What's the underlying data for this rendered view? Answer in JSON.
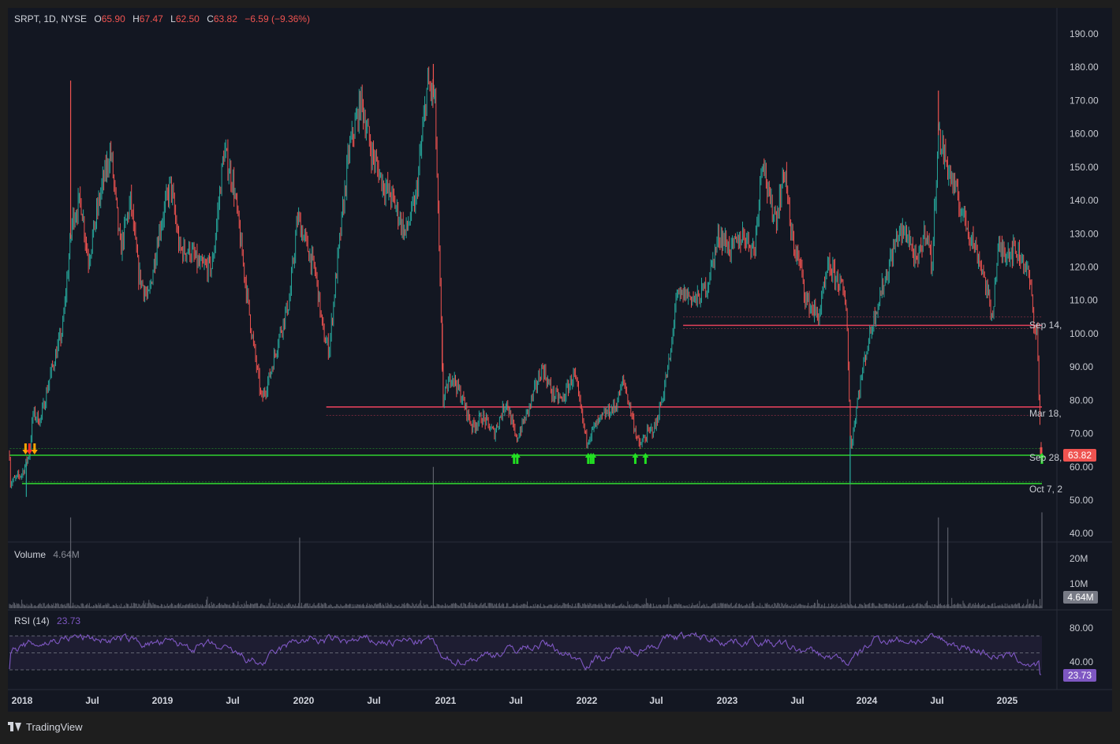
{
  "header": {
    "symbol": "SRPT, 1D, NYSE",
    "o_label": "O",
    "o_value": "65.90",
    "h_label": "H",
    "h_value": "67.47",
    "l_label": "L",
    "l_value": "62.50",
    "c_label": "C",
    "c_value": "63.82",
    "change": "−6.59 (−9.36%)"
  },
  "price_axis": {
    "ticks": [
      "190.00",
      "180.00",
      "170.00",
      "160.00",
      "150.00",
      "140.00",
      "130.00",
      "120.00",
      "110.00",
      "100.00",
      "90.00",
      "80.00",
      "70.00",
      "60.00",
      "50.00",
      "40.00"
    ],
    "last_price": "63.82"
  },
  "line_labels": [
    "Sep 14,",
    "Mar 18,",
    "Sep 28,",
    "Oct 7, 2"
  ],
  "volume": {
    "label": "Volume",
    "value": "4.64M",
    "ticks": [
      "20M",
      "10M"
    ],
    "last": "4.64M"
  },
  "rsi": {
    "label": "RSI (14)",
    "value": "23.73",
    "ticks": [
      "80.00",
      "40.00"
    ],
    "last": "23.73"
  },
  "time_axis": [
    "2018",
    "Jul",
    "2019",
    "Jul",
    "2020",
    "Jul",
    "2021",
    "Jul",
    "2022",
    "Jul",
    "2023",
    "Jul",
    "2024",
    "Jul",
    "2025"
  ],
  "brand": "TradingView",
  "colors": {
    "bg": "#131722",
    "up": "#26a69a",
    "down": "#ef5350",
    "red_level": "#e0405a",
    "green_level": "#30d030",
    "rsi": "#7e57c2",
    "volume": "#5d606b"
  },
  "chart_data": {
    "type": "candlestick",
    "symbol": "SRPT",
    "interval": "1D",
    "exchange": "NYSE",
    "ylim": [
      40,
      192
    ],
    "x_range": [
      "2018-01",
      "2025-03"
    ],
    "price_path": [
      {
        "t": "2018-01-01",
        "p": 55
      },
      {
        "t": "2018-02-01",
        "p": 58
      },
      {
        "t": "2018-02-20",
        "p": 64
      },
      {
        "t": "2018-03-01",
        "p": 76
      },
      {
        "t": "2018-03-20",
        "p": 74
      },
      {
        "t": "2018-04-15",
        "p": 88
      },
      {
        "t": "2018-05-15",
        "p": 101
      },
      {
        "t": "2018-06-10",
        "p": 135
      },
      {
        "t": "2018-07-01",
        "p": 140
      },
      {
        "t": "2018-07-20",
        "p": 122
      },
      {
        "t": "2018-08-20",
        "p": 142
      },
      {
        "t": "2018-09-15",
        "p": 155
      },
      {
        "t": "2018-10-10",
        "p": 125
      },
      {
        "t": "2018-11-05",
        "p": 140
      },
      {
        "t": "2018-11-25",
        "p": 118
      },
      {
        "t": "2018-12-20",
        "p": 110
      },
      {
        "t": "2019-01-15",
        "p": 130
      },
      {
        "t": "2019-02-15",
        "p": 145
      },
      {
        "t": "2019-03-10",
        "p": 125
      },
      {
        "t": "2019-04-05",
        "p": 125
      },
      {
        "t": "2019-05-01",
        "p": 120
      },
      {
        "t": "2019-06-01",
        "p": 120
      },
      {
        "t": "2019-07-01",
        "p": 155
      },
      {
        "t": "2019-07-25",
        "p": 145
      },
      {
        "t": "2019-08-15",
        "p": 125
      },
      {
        "t": "2019-09-10",
        "p": 100
      },
      {
        "t": "2019-10-05",
        "p": 80
      },
      {
        "t": "2019-10-25",
        "p": 87
      },
      {
        "t": "2019-11-20",
        "p": 100
      },
      {
        "t": "2019-12-15",
        "p": 110
      },
      {
        "t": "2020-01-05",
        "p": 135
      },
      {
        "t": "2020-02-01",
        "p": 125
      },
      {
        "t": "2020-02-20",
        "p": 118
      },
      {
        "t": "2020-03-10",
        "p": 100
      },
      {
        "t": "2020-03-25",
        "p": 95
      },
      {
        "t": "2020-04-10",
        "p": 115
      },
      {
        "t": "2020-05-15",
        "p": 155
      },
      {
        "t": "2020-06-15",
        "p": 170
      },
      {
        "t": "2020-07-10",
        "p": 155
      },
      {
        "t": "2020-08-10",
        "p": 145
      },
      {
        "t": "2020-09-05",
        "p": 140
      },
      {
        "t": "2020-10-05",
        "p": 130
      },
      {
        "t": "2020-11-01",
        "p": 140
      },
      {
        "t": "2020-12-01",
        "p": 175
      },
      {
        "t": "2020-12-20",
        "p": 170
      },
      {
        "t": "2021-01-10",
        "p": 80
      },
      {
        "t": "2021-02-01",
        "p": 88
      },
      {
        "t": "2021-03-01",
        "p": 80
      },
      {
        "t": "2021-03-25",
        "p": 72
      },
      {
        "t": "2021-04-20",
        "p": 75
      },
      {
        "t": "2021-05-20",
        "p": 70
      },
      {
        "t": "2021-06-20",
        "p": 80
      },
      {
        "t": "2021-07-15",
        "p": 68
      },
      {
        "t": "2021-08-15",
        "p": 77
      },
      {
        "t": "2021-09-20",
        "p": 90
      },
      {
        "t": "2021-10-15",
        "p": 82
      },
      {
        "t": "2021-11-10",
        "p": 80
      },
      {
        "t": "2021-12-10",
        "p": 88
      },
      {
        "t": "2022-01-10",
        "p": 68
      },
      {
        "t": "2022-02-01",
        "p": 72
      },
      {
        "t": "2022-03-01",
        "p": 76
      },
      {
        "t": "2022-03-25",
        "p": 78
      },
      {
        "t": "2022-04-15",
        "p": 86
      },
      {
        "t": "2022-05-05",
        "p": 76
      },
      {
        "t": "2022-05-25",
        "p": 66
      },
      {
        "t": "2022-06-15",
        "p": 70
      },
      {
        "t": "2022-07-05",
        "p": 72
      },
      {
        "t": "2022-07-25",
        "p": 82
      },
      {
        "t": "2022-08-15",
        "p": 95
      },
      {
        "t": "2022-08-25",
        "p": 110
      },
      {
        "t": "2022-09-20",
        "p": 112
      },
      {
        "t": "2022-10-20",
        "p": 110
      },
      {
        "t": "2022-11-15",
        "p": 115
      },
      {
        "t": "2022-12-15",
        "p": 130
      },
      {
        "t": "2023-01-15",
        "p": 125
      },
      {
        "t": "2023-02-15",
        "p": 130
      },
      {
        "t": "2023-03-15",
        "p": 125
      },
      {
        "t": "2023-04-05",
        "p": 155
      },
      {
        "t": "2023-04-20",
        "p": 140
      },
      {
        "t": "2023-05-10",
        "p": 135
      },
      {
        "t": "2023-06-01",
        "p": 150
      },
      {
        "t": "2023-06-15",
        "p": 130
      },
      {
        "t": "2023-07-10",
        "p": 120
      },
      {
        "t": "2023-07-25",
        "p": 110
      },
      {
        "t": "2023-08-25",
        "p": 105
      },
      {
        "t": "2023-09-20",
        "p": 120
      },
      {
        "t": "2023-10-20",
        "p": 115
      },
      {
        "t": "2023-11-05",
        "p": 108
      },
      {
        "t": "2023-11-15",
        "p": 65
      },
      {
        "t": "2023-12-05",
        "p": 82
      },
      {
        "t": "2023-12-25",
        "p": 95
      },
      {
        "t": "2024-01-20",
        "p": 108
      },
      {
        "t": "2024-02-15",
        "p": 118
      },
      {
        "t": "2024-03-15",
        "p": 130
      },
      {
        "t": "2024-04-10",
        "p": 130
      },
      {
        "t": "2024-05-01",
        "p": 120
      },
      {
        "t": "2024-05-25",
        "p": 132
      },
      {
        "t": "2024-06-10",
        "p": 120
      },
      {
        "t": "2024-06-25",
        "p": 160
      },
      {
        "t": "2024-07-20",
        "p": 150
      },
      {
        "t": "2024-08-15",
        "p": 140
      },
      {
        "t": "2024-09-15",
        "p": 130
      },
      {
        "t": "2024-10-15",
        "p": 120
      },
      {
        "t": "2024-11-10",
        "p": 105
      },
      {
        "t": "2024-11-25",
        "p": 125
      },
      {
        "t": "2024-12-15",
        "p": 125
      },
      {
        "t": "2025-01-10",
        "p": 125
      },
      {
        "t": "2025-01-30",
        "p": 122
      },
      {
        "t": "2025-02-15",
        "p": 115
      },
      {
        "t": "2025-02-28",
        "p": 100
      },
      {
        "t": "2025-03-05",
        "p": 101
      },
      {
        "t": "2025-03-10",
        "p": 78
      },
      {
        "t": "2025-03-17",
        "p": 63.82
      }
    ],
    "spikes": [
      {
        "t": "2018-06-05",
        "high": 176
      },
      {
        "t": "2020-12-16",
        "high": 181
      },
      {
        "t": "2021-01-08",
        "high": 103
      },
      {
        "t": "2023-11-14",
        "low": 55
      },
      {
        "t": "2024-06-26",
        "high": 173
      },
      {
        "t": "2018-02-12",
        "low": 51
      }
    ],
    "last_candle": {
      "open": 65.9,
      "high": 67.47,
      "low": 62.5,
      "close": 63.82,
      "change": -6.59,
      "change_pct": -9.36
    },
    "levels": [
      {
        "name": "Sep 14,",
        "color": "red",
        "price": 102.5,
        "from": "2022-09-14",
        "band": [
          101.5,
          105
        ]
      },
      {
        "name": "Mar 18,",
        "color": "red",
        "price": 78,
        "from": "2020-03-18",
        "band": [
          75.5,
          78
        ]
      },
      {
        "name": "Sep 28,",
        "color": "green",
        "price": 63.5,
        "from": "2018-01-01",
        "band": [
          63.5,
          65.5
        ]
      },
      {
        "name": "Oct 7, 2",
        "color": "green",
        "price": 55,
        "from": "2018-02-01",
        "band": [
          55,
          55.5
        ]
      }
    ],
    "signals": [
      {
        "t": "2018-02-10",
        "type": "down",
        "color": "orange"
      },
      {
        "t": "2018-02-20",
        "type": "down",
        "color": "red"
      },
      {
        "t": "2018-03-05",
        "type": "down",
        "color": "orange"
      },
      {
        "t": "2021-07-10",
        "type": "up"
      },
      {
        "t": "2021-07-18",
        "type": "up"
      },
      {
        "t": "2022-01-15",
        "type": "up"
      },
      {
        "t": "2022-01-22",
        "type": "up"
      },
      {
        "t": "2022-01-28",
        "type": "up"
      },
      {
        "t": "2022-05-15",
        "type": "up"
      },
      {
        "t": "2022-06-10",
        "type": "up"
      },
      {
        "t": "2025-03-17",
        "type": "up"
      }
    ],
    "volume_spikes": [
      {
        "t": "2018-06-05",
        "v": 9
      },
      {
        "t": "2020-01-10",
        "v": 7
      },
      {
        "t": "2020-12-16",
        "v": 14
      },
      {
        "t": "2023-11-14",
        "v": 15.5
      },
      {
        "t": "2024-06-26",
        "v": 9
      },
      {
        "t": "2024-07-20",
        "v": 8
      },
      {
        "t": "2025-03-17",
        "v": 9.5
      }
    ],
    "volume_last": 4.64,
    "rsi_anchor": [
      {
        "t": "2018-01-01",
        "v": 55
      },
      {
        "t": "2018-06-05",
        "v": 82
      },
      {
        "t": "2019-06-01",
        "v": 60
      },
      {
        "t": "2019-10-05",
        "v": 28
      },
      {
        "t": "2020-01-05",
        "v": 75
      },
      {
        "t": "2020-06-15",
        "v": 72
      },
      {
        "t": "2020-12-16",
        "v": 72
      },
      {
        "t": "2021-01-10",
        "v": 30
      },
      {
        "t": "2021-09-20",
        "v": 68
      },
      {
        "t": "2022-01-10",
        "v": 33
      },
      {
        "t": "2022-09-01",
        "v": 82
      },
      {
        "t": "2023-04-05",
        "v": 72
      },
      {
        "t": "2023-11-15",
        "v": 32
      },
      {
        "t": "2024-01-20",
        "v": 78
      },
      {
        "t": "2024-06-25",
        "v": 75
      },
      {
        "t": "2025-03-17",
        "v": 23.73
      }
    ],
    "rsi_bands": {
      "upper": 70,
      "mid": 50,
      "lower": 30,
      "ylim": [
        18,
        88
      ]
    }
  }
}
